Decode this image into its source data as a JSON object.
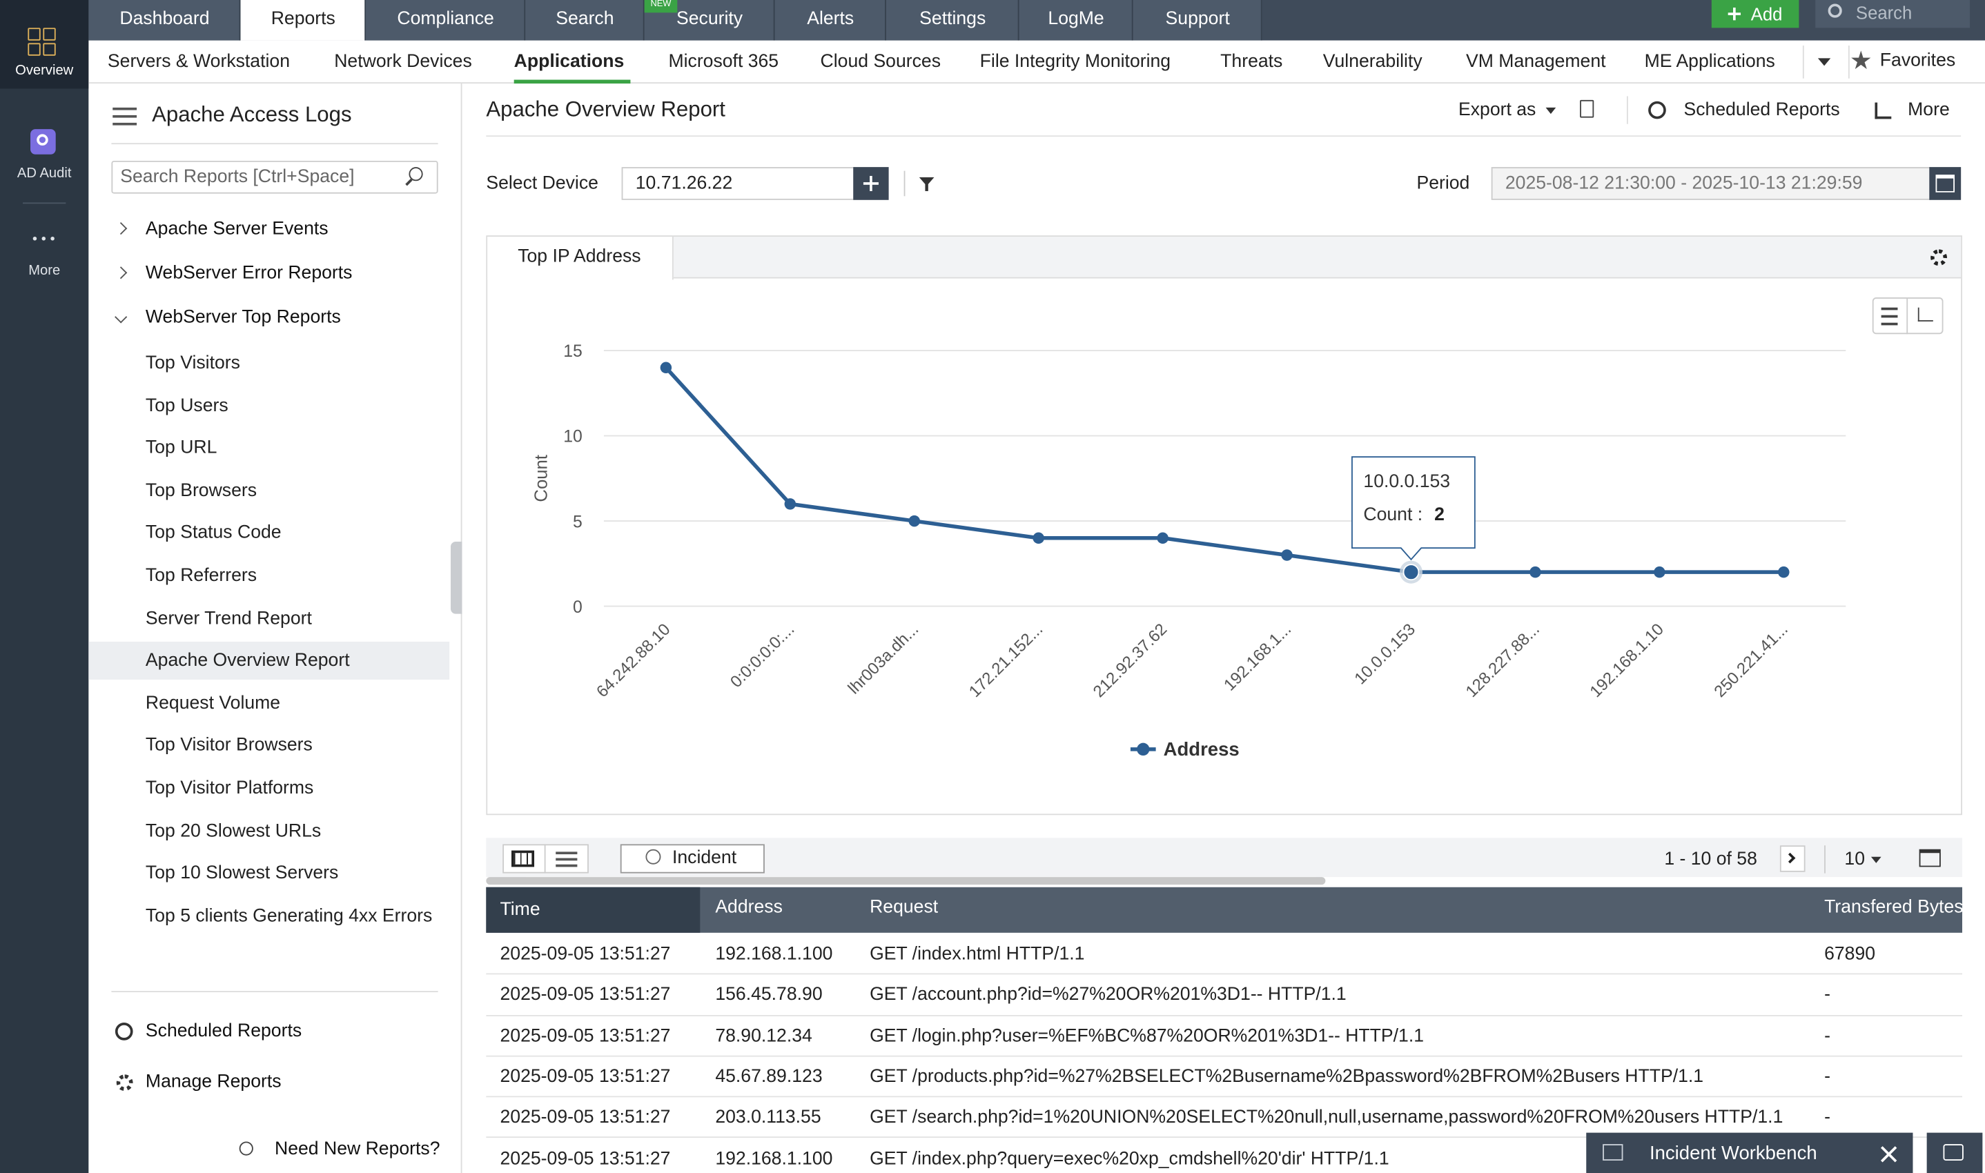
{
  "top_nav": {
    "tabs": [
      "Dashboard",
      "Reports",
      "Compliance",
      "Search",
      "Security",
      "Alerts",
      "Settings",
      "LogMe",
      "Support"
    ],
    "badge": "NEW",
    "add": "Add",
    "search": "Search"
  },
  "rail": [
    "Overview",
    "AD Audit",
    "More"
  ],
  "sub_nav": {
    "items": [
      "Servers & Workstation",
      "Network Devices",
      "Applications",
      "Microsoft 365",
      "Cloud Sources",
      "File Integrity Monitoring",
      "Threats",
      "Vulnerability",
      "VM Management",
      "ME Applications"
    ],
    "favorites": "Favorites"
  },
  "sidebar": {
    "title": "Apache Access Logs",
    "search_placeholder": "Search Reports [Ctrl+Space]",
    "groups": [
      "Apache Server Events",
      "WebServer Error Reports",
      "WebServer Top Reports"
    ],
    "items": [
      "Top Visitors",
      "Top Users",
      "Top URL",
      "Top Browsers",
      "Top Status Code",
      "Top Referrers",
      "Server Trend Report",
      "Apache Overview Report",
      "Request Volume",
      "Top Visitor Browsers",
      "Top Visitor Platforms",
      "Top 20 Slowest URLs",
      "Top 10 Slowest Servers",
      "Top 5 clients Generating 4xx Errors"
    ],
    "footer": [
      "Scheduled Reports",
      "Manage Reports",
      "Need New Reports?"
    ]
  },
  "header": {
    "title": "Apache Overview Report",
    "export": "Export as",
    "scheduled": "Scheduled Reports",
    "more": "More"
  },
  "filters": {
    "device_label": "Select Device",
    "device": "10.71.26.22",
    "period_label": "Period",
    "period": "2025-08-12 21:30:00 - 2025-10-13 21:29:59"
  },
  "panel_tab": "Top IP Address",
  "chart_data": {
    "type": "line",
    "y_label": "Count",
    "categories": [
      "64.242.88.10",
      "0:0:0:0:0:...",
      "lhr003a.dh...",
      "172.21.152...",
      "212.92.37.62",
      "192.168.1...",
      "10.0.0.153",
      "128.227.88...",
      "192.168.1.10",
      "250.221.41..."
    ],
    "series": [
      {
        "name": "Address",
        "color": "#2d5f93",
        "values": [
          14,
          6,
          5,
          4,
          4,
          3,
          2,
          2,
          2,
          2
        ]
      }
    ],
    "ylim": [
      0,
      15
    ],
    "yticks": [
      0,
      5,
      10,
      15
    ],
    "grid": true,
    "legend": "bottom",
    "tooltip": {
      "label": "Count :"
    }
  },
  "table": {
    "toolbar": {
      "incident": "Incident",
      "pagination": "1 - 10 of 58",
      "page_size": "10"
    },
    "columns": [
      "Time",
      "Address",
      "Request",
      "Transfered Bytes"
    ],
    "rows": [
      [
        "2025-09-05 13:51:27",
        "192.168.1.100",
        "GET /index.html HTTP/1.1",
        "67890"
      ],
      [
        "2025-09-05 13:51:27",
        "156.45.78.90",
        "GET /account.php?id=%27%20OR%201%3D1-- HTTP/1.1",
        "-"
      ],
      [
        "2025-09-05 13:51:27",
        "78.90.12.34",
        "GET /login.php?user=%EF%BC%87%20OR%201%3D1-- HTTP/1.1",
        "-"
      ],
      [
        "2025-09-05 13:51:27",
        "45.67.89.123",
        "GET /products.php?id=%27%2BSELECT%2Busername%2Bpassword%2BFROM%2Busers HTTP/1.1",
        "-"
      ],
      [
        "2025-09-05 13:51:27",
        "203.0.113.55",
        "GET /search.php?id=1%20UNION%20SELECT%20null,null,username,password%20FROM%20users HTTP/1.1",
        "-"
      ],
      [
        "2025-09-05 13:51:27",
        "192.168.1.100",
        "GET /index.php?query=exec%20xp_cmdshell%20'dir' HTTP/1.1",
        "-"
      ]
    ]
  },
  "workbench": "Incident Workbench"
}
